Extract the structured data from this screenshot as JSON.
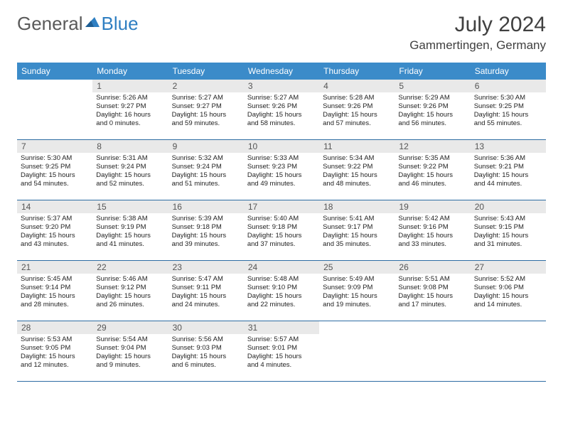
{
  "brand": {
    "part1": "General",
    "part2": "Blue"
  },
  "title": "July 2024",
  "location": "Gammertingen, Germany",
  "colors": {
    "header_bg": "#3b8bc9",
    "daynum_bg": "#e9e9e9",
    "row_border": "#2d6ca3",
    "brand_gray": "#5a5a5a",
    "brand_blue": "#2f7fc2"
  },
  "weekdays": [
    "Sunday",
    "Monday",
    "Tuesday",
    "Wednesday",
    "Thursday",
    "Friday",
    "Saturday"
  ],
  "weeks": [
    [
      null,
      {
        "n": "1",
        "sr": "Sunrise: 5:26 AM",
        "ss": "Sunset: 9:27 PM",
        "dl1": "Daylight: 16 hours",
        "dl2": "and 0 minutes."
      },
      {
        "n": "2",
        "sr": "Sunrise: 5:27 AM",
        "ss": "Sunset: 9:27 PM",
        "dl1": "Daylight: 15 hours",
        "dl2": "and 59 minutes."
      },
      {
        "n": "3",
        "sr": "Sunrise: 5:27 AM",
        "ss": "Sunset: 9:26 PM",
        "dl1": "Daylight: 15 hours",
        "dl2": "and 58 minutes."
      },
      {
        "n": "4",
        "sr": "Sunrise: 5:28 AM",
        "ss": "Sunset: 9:26 PM",
        "dl1": "Daylight: 15 hours",
        "dl2": "and 57 minutes."
      },
      {
        "n": "5",
        "sr": "Sunrise: 5:29 AM",
        "ss": "Sunset: 9:26 PM",
        "dl1": "Daylight: 15 hours",
        "dl2": "and 56 minutes."
      },
      {
        "n": "6",
        "sr": "Sunrise: 5:30 AM",
        "ss": "Sunset: 9:25 PM",
        "dl1": "Daylight: 15 hours",
        "dl2": "and 55 minutes."
      }
    ],
    [
      {
        "n": "7",
        "sr": "Sunrise: 5:30 AM",
        "ss": "Sunset: 9:25 PM",
        "dl1": "Daylight: 15 hours",
        "dl2": "and 54 minutes."
      },
      {
        "n": "8",
        "sr": "Sunrise: 5:31 AM",
        "ss": "Sunset: 9:24 PM",
        "dl1": "Daylight: 15 hours",
        "dl2": "and 52 minutes."
      },
      {
        "n": "9",
        "sr": "Sunrise: 5:32 AM",
        "ss": "Sunset: 9:24 PM",
        "dl1": "Daylight: 15 hours",
        "dl2": "and 51 minutes."
      },
      {
        "n": "10",
        "sr": "Sunrise: 5:33 AM",
        "ss": "Sunset: 9:23 PM",
        "dl1": "Daylight: 15 hours",
        "dl2": "and 49 minutes."
      },
      {
        "n": "11",
        "sr": "Sunrise: 5:34 AM",
        "ss": "Sunset: 9:22 PM",
        "dl1": "Daylight: 15 hours",
        "dl2": "and 48 minutes."
      },
      {
        "n": "12",
        "sr": "Sunrise: 5:35 AM",
        "ss": "Sunset: 9:22 PM",
        "dl1": "Daylight: 15 hours",
        "dl2": "and 46 minutes."
      },
      {
        "n": "13",
        "sr": "Sunrise: 5:36 AM",
        "ss": "Sunset: 9:21 PM",
        "dl1": "Daylight: 15 hours",
        "dl2": "and 44 minutes."
      }
    ],
    [
      {
        "n": "14",
        "sr": "Sunrise: 5:37 AM",
        "ss": "Sunset: 9:20 PM",
        "dl1": "Daylight: 15 hours",
        "dl2": "and 43 minutes."
      },
      {
        "n": "15",
        "sr": "Sunrise: 5:38 AM",
        "ss": "Sunset: 9:19 PM",
        "dl1": "Daylight: 15 hours",
        "dl2": "and 41 minutes."
      },
      {
        "n": "16",
        "sr": "Sunrise: 5:39 AM",
        "ss": "Sunset: 9:18 PM",
        "dl1": "Daylight: 15 hours",
        "dl2": "and 39 minutes."
      },
      {
        "n": "17",
        "sr": "Sunrise: 5:40 AM",
        "ss": "Sunset: 9:18 PM",
        "dl1": "Daylight: 15 hours",
        "dl2": "and 37 minutes."
      },
      {
        "n": "18",
        "sr": "Sunrise: 5:41 AM",
        "ss": "Sunset: 9:17 PM",
        "dl1": "Daylight: 15 hours",
        "dl2": "and 35 minutes."
      },
      {
        "n": "19",
        "sr": "Sunrise: 5:42 AM",
        "ss": "Sunset: 9:16 PM",
        "dl1": "Daylight: 15 hours",
        "dl2": "and 33 minutes."
      },
      {
        "n": "20",
        "sr": "Sunrise: 5:43 AM",
        "ss": "Sunset: 9:15 PM",
        "dl1": "Daylight: 15 hours",
        "dl2": "and 31 minutes."
      }
    ],
    [
      {
        "n": "21",
        "sr": "Sunrise: 5:45 AM",
        "ss": "Sunset: 9:14 PM",
        "dl1": "Daylight: 15 hours",
        "dl2": "and 28 minutes."
      },
      {
        "n": "22",
        "sr": "Sunrise: 5:46 AM",
        "ss": "Sunset: 9:12 PM",
        "dl1": "Daylight: 15 hours",
        "dl2": "and 26 minutes."
      },
      {
        "n": "23",
        "sr": "Sunrise: 5:47 AM",
        "ss": "Sunset: 9:11 PM",
        "dl1": "Daylight: 15 hours",
        "dl2": "and 24 minutes."
      },
      {
        "n": "24",
        "sr": "Sunrise: 5:48 AM",
        "ss": "Sunset: 9:10 PM",
        "dl1": "Daylight: 15 hours",
        "dl2": "and 22 minutes."
      },
      {
        "n": "25",
        "sr": "Sunrise: 5:49 AM",
        "ss": "Sunset: 9:09 PM",
        "dl1": "Daylight: 15 hours",
        "dl2": "and 19 minutes."
      },
      {
        "n": "26",
        "sr": "Sunrise: 5:51 AM",
        "ss": "Sunset: 9:08 PM",
        "dl1": "Daylight: 15 hours",
        "dl2": "and 17 minutes."
      },
      {
        "n": "27",
        "sr": "Sunrise: 5:52 AM",
        "ss": "Sunset: 9:06 PM",
        "dl1": "Daylight: 15 hours",
        "dl2": "and 14 minutes."
      }
    ],
    [
      {
        "n": "28",
        "sr": "Sunrise: 5:53 AM",
        "ss": "Sunset: 9:05 PM",
        "dl1": "Daylight: 15 hours",
        "dl2": "and 12 minutes."
      },
      {
        "n": "29",
        "sr": "Sunrise: 5:54 AM",
        "ss": "Sunset: 9:04 PM",
        "dl1": "Daylight: 15 hours",
        "dl2": "and 9 minutes."
      },
      {
        "n": "30",
        "sr": "Sunrise: 5:56 AM",
        "ss": "Sunset: 9:03 PM",
        "dl1": "Daylight: 15 hours",
        "dl2": "and 6 minutes."
      },
      {
        "n": "31",
        "sr": "Sunrise: 5:57 AM",
        "ss": "Sunset: 9:01 PM",
        "dl1": "Daylight: 15 hours",
        "dl2": "and 4 minutes."
      },
      null,
      null,
      null
    ]
  ]
}
